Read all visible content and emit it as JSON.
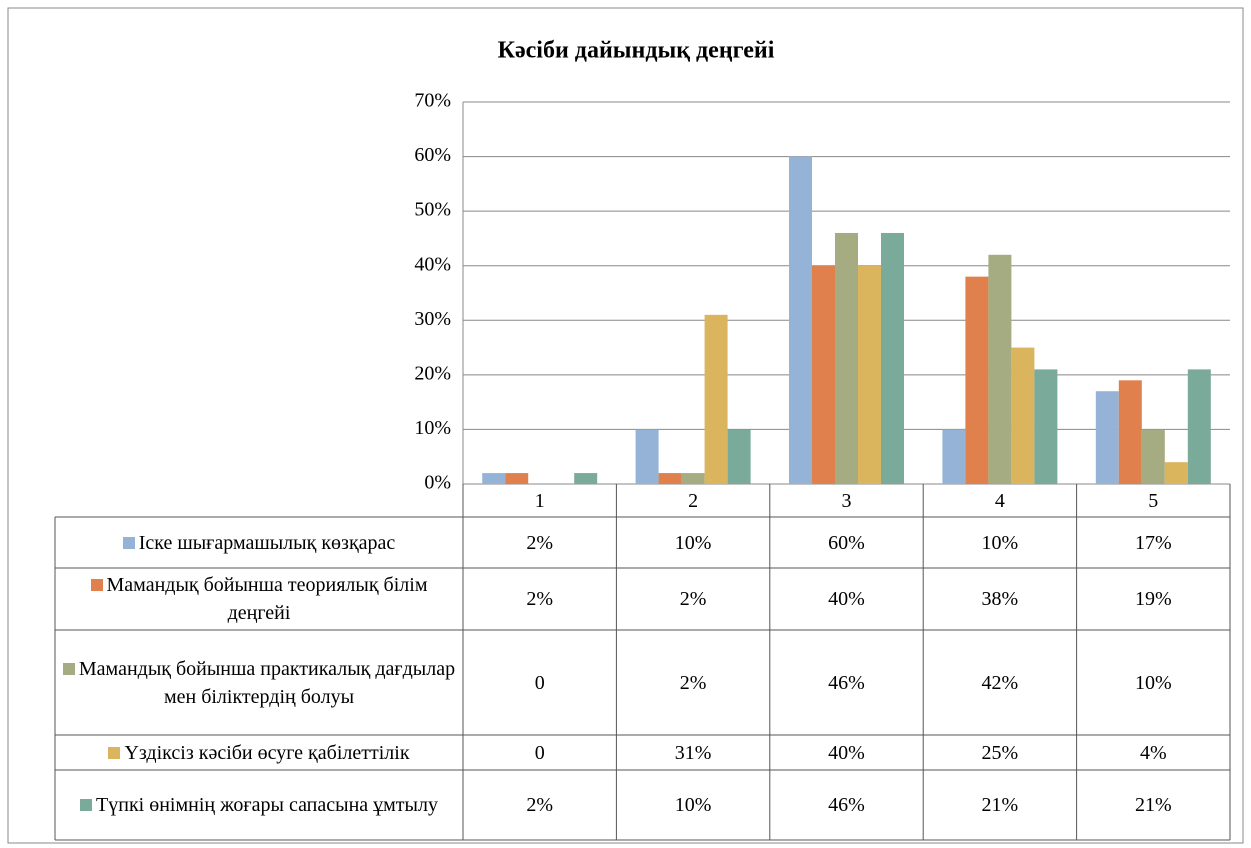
{
  "chart_data": {
    "type": "bar",
    "title": "Кәсіби дайындық деңгейі",
    "categories": [
      "1",
      "2",
      "3",
      "4",
      "5"
    ],
    "ylim": [
      0,
      70
    ],
    "yticks": [
      {
        "value": 0,
        "label": "0%"
      },
      {
        "value": 10,
        "label": "10%"
      },
      {
        "value": 20,
        "label": "20%"
      },
      {
        "value": 30,
        "label": "30%"
      },
      {
        "value": 40,
        "label": "40%"
      },
      {
        "value": 50,
        "label": "50%"
      },
      {
        "value": 60,
        "label": "60%"
      },
      {
        "value": 70,
        "label": "70%"
      }
    ],
    "grid": true,
    "series": [
      {
        "name": "Іске шығармашылық көзқарас",
        "color": "#95b3d7",
        "values": [
          2,
          10,
          60,
          10,
          17
        ],
        "value_labels": [
          "2%",
          "10%",
          "60%",
          "10%",
          "17%"
        ]
      },
      {
        "name": "Мамандық бойынша теориялық білім деңгейі",
        "color": "#e0804c",
        "values": [
          2,
          2,
          40,
          38,
          19
        ],
        "value_labels": [
          "2%",
          "2%",
          "40%",
          "38%",
          "19%"
        ]
      },
      {
        "name": "Мамандық бойынша практикалық дағдылар мен біліктердің болуы",
        "color": "#a5ac82",
        "values": [
          0,
          2,
          46,
          42,
          10
        ],
        "value_labels": [
          "0",
          "2%",
          "46%",
          "42%",
          "10%"
        ]
      },
      {
        "name": "Үздіксіз кәсіби өсуге қабілеттілік",
        "color": "#dbb55e",
        "values": [
          0,
          31,
          40,
          25,
          4
        ],
        "value_labels": [
          "0",
          "31%",
          "40%",
          "25%",
          "4%"
        ]
      },
      {
        "name": "Түпкі өнімнің жоғары сапасына ұмтылу",
        "color": "#7aaa9a",
        "values": [
          2,
          10,
          46,
          21,
          21
        ],
        "value_labels": [
          "2%",
          "10%",
          "46%",
          "21%",
          "21%"
        ]
      }
    ]
  }
}
